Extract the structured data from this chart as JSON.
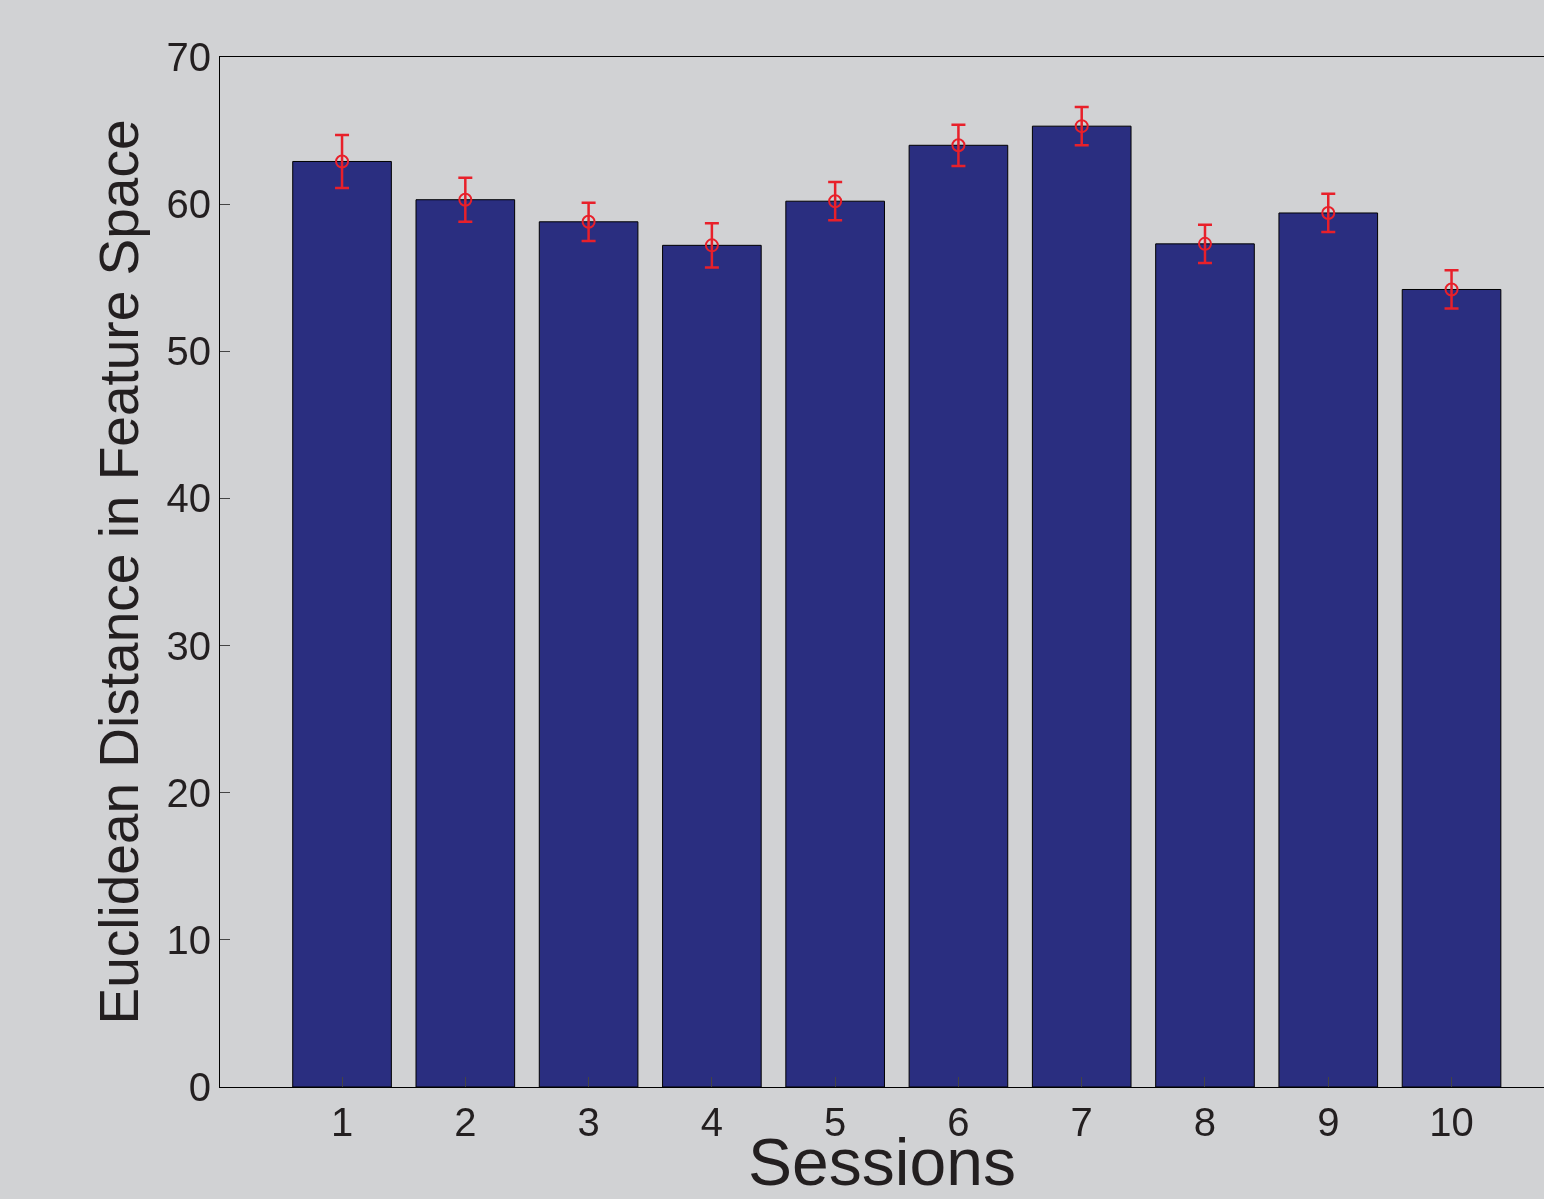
{
  "chart_data": {
    "type": "bar",
    "xlabel": "Sessions",
    "ylabel": "Euclidean Distance in Feature Space",
    "categories": [
      "1",
      "2",
      "3",
      "4",
      "5",
      "6",
      "7",
      "8",
      "9",
      "10"
    ],
    "series": [
      {
        "color": "#2a2e80",
        "values": [
          62.9,
          60.3,
          58.8,
          57.2,
          60.2,
          64.0,
          65.3,
          57.3,
          59.4,
          54.2
        ]
      },
      {
        "type": "scatter",
        "color": "#e8202a",
        "marker": "circle",
        "x": [
          "1",
          "2",
          "3",
          "4",
          "5",
          "6",
          "7",
          "8",
          "9",
          "10"
        ],
        "values": [
          62.9,
          60.3,
          58.8,
          57.2,
          60.2,
          64.0,
          65.3,
          57.3,
          59.4,
          54.2
        ],
        "errors": [
          1.8,
          1.5,
          1.3,
          1.5,
          1.3,
          1.4,
          1.3,
          1.3,
          1.3,
          1.3
        ]
      }
    ],
    "ylim": [
      0,
      70
    ],
    "yticks": [
      0,
      10,
      20,
      30,
      40,
      50,
      60,
      70
    ],
    "grid": false
  }
}
